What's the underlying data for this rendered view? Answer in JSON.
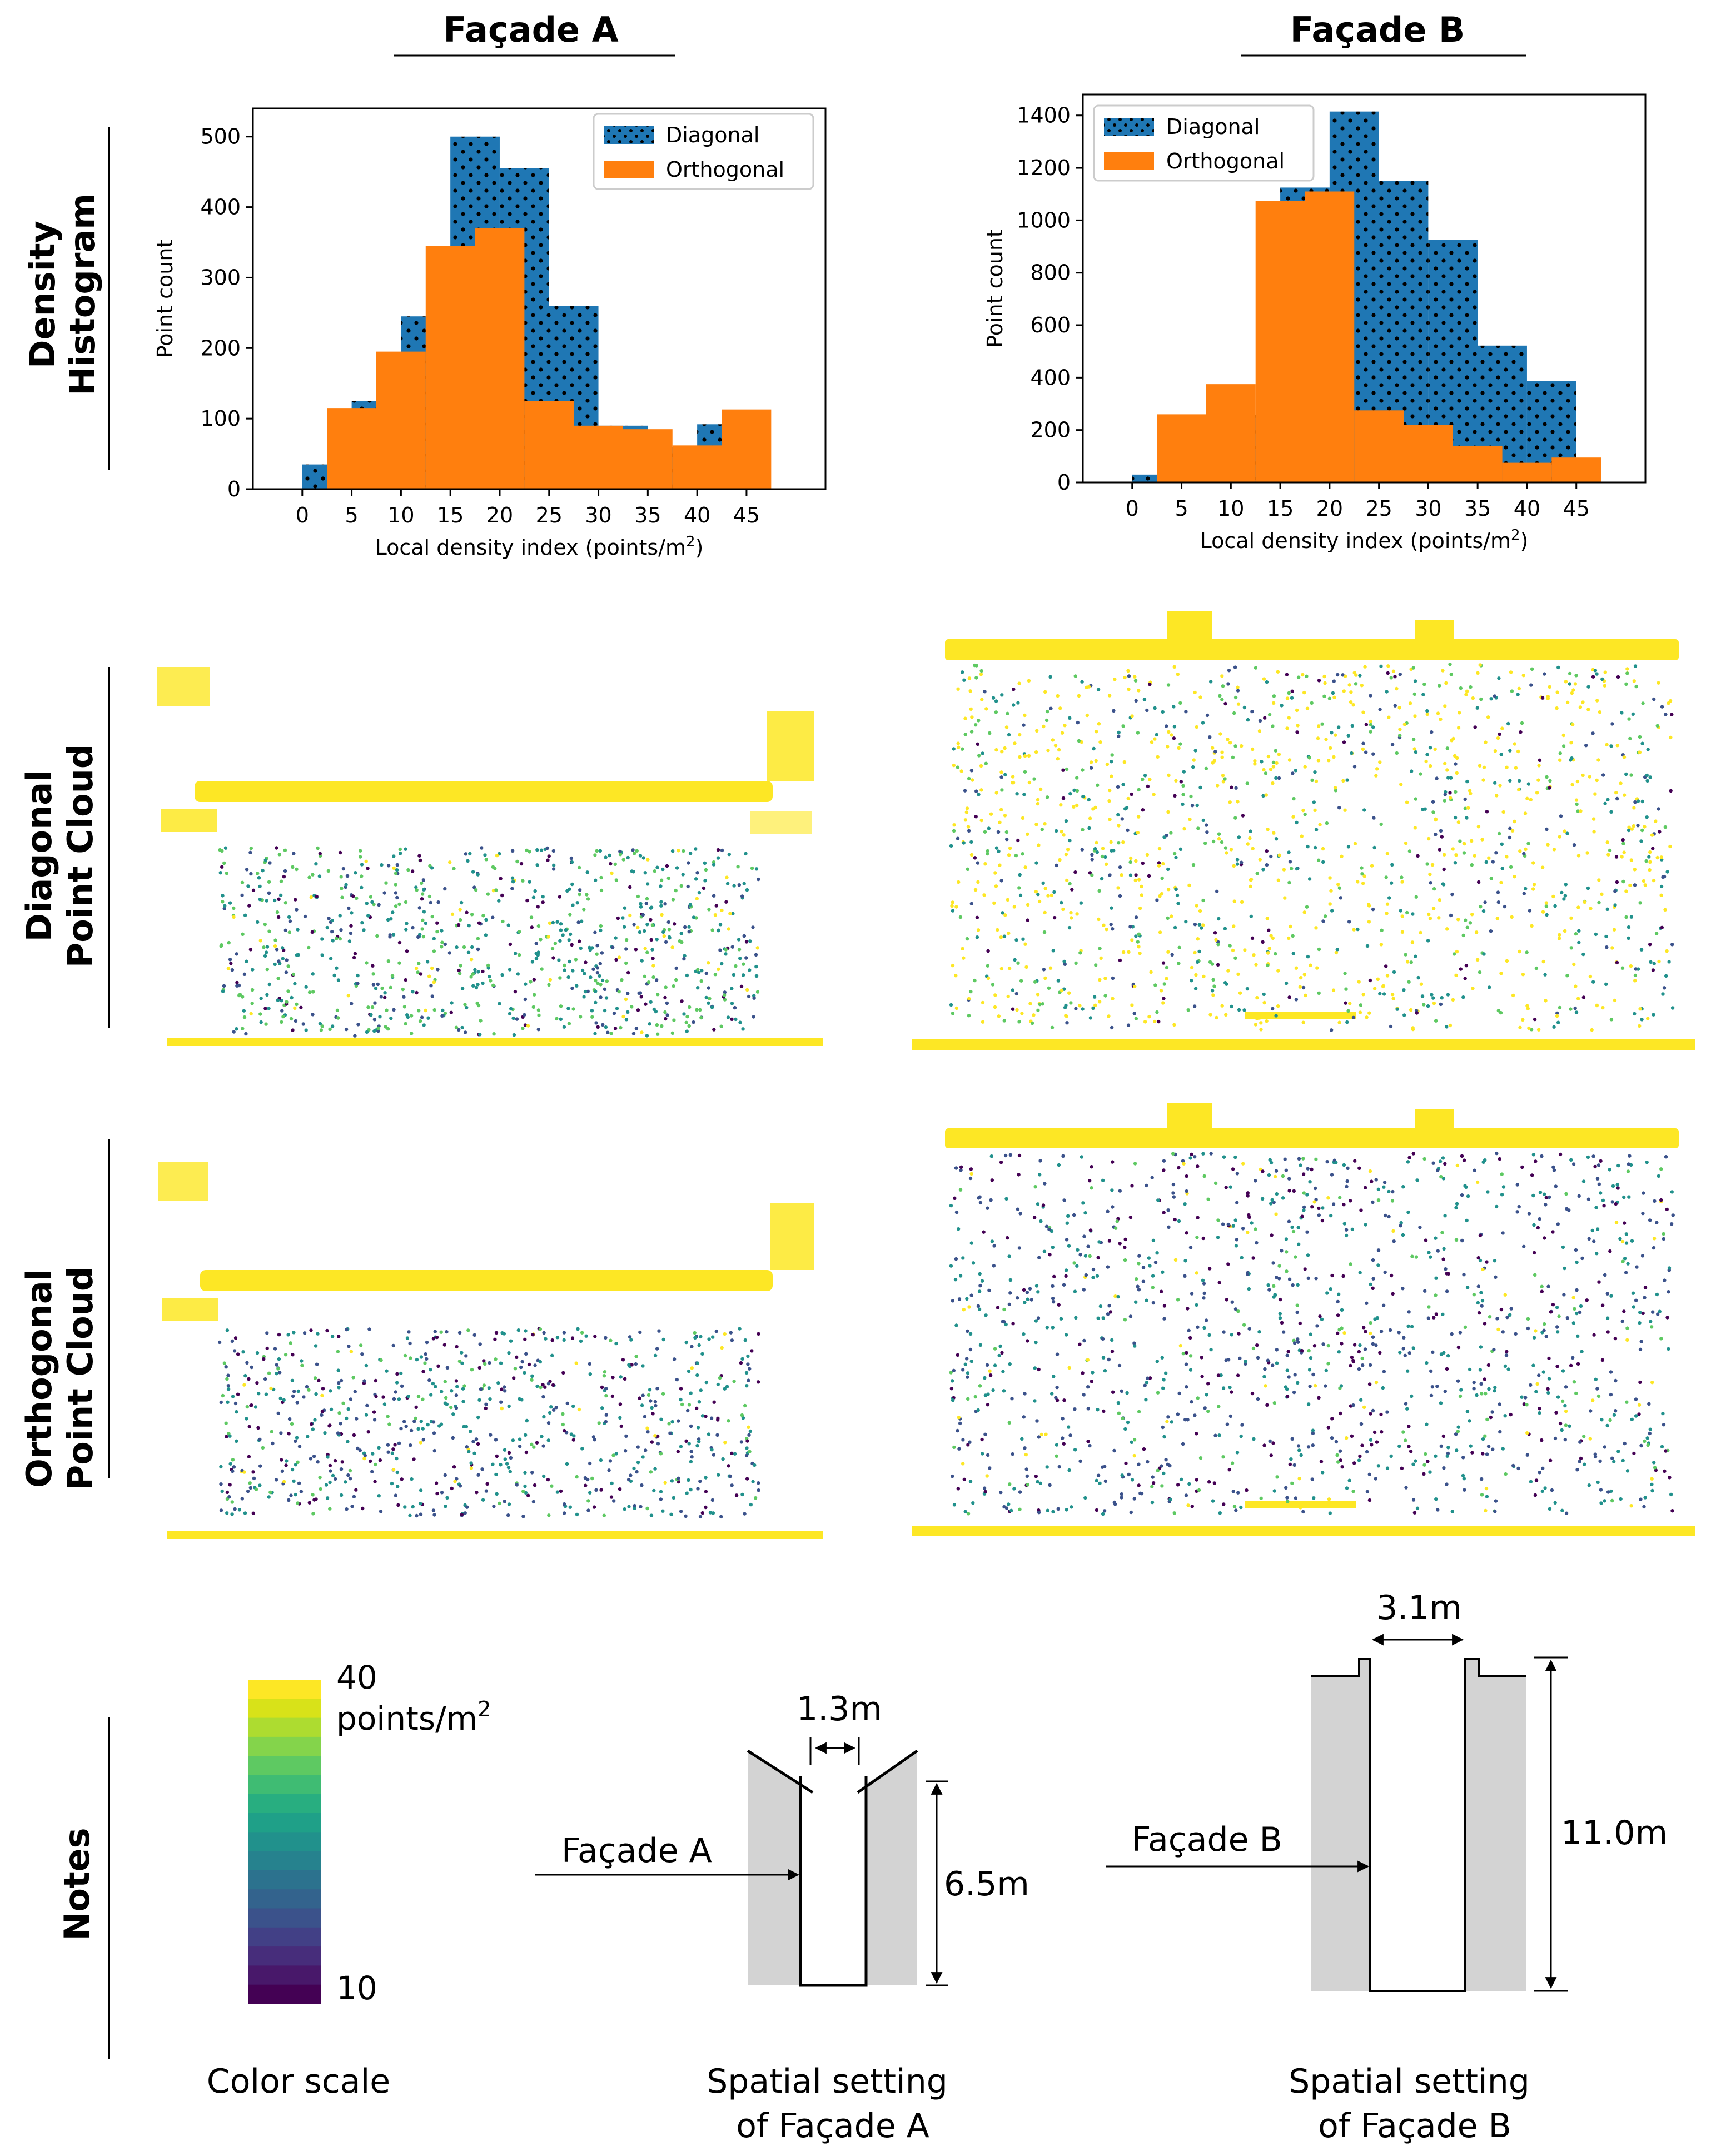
{
  "titles": {
    "facade_a": "Façade A",
    "facade_b": "Façade B",
    "rows": {
      "density_line1": "Density",
      "density_line2": "Histogram",
      "diagonal_line1": "Diagonal",
      "diagonal_line2": "Point Cloud",
      "orthogonal_line1": "Orthogonal",
      "orthogonal_line2": "Point Cloud",
      "notes": "Notes"
    }
  },
  "chart_data": [
    {
      "type": "bar",
      "title": "Façade A",
      "xlabel_main": "Local density index (points/m",
      "xlabel_sup": "2",
      "xlabel_end": ")",
      "ylabel": "Point count",
      "x_ticks": [
        "0",
        "5",
        "10",
        "15",
        "20",
        "25",
        "30",
        "35",
        "40",
        "45"
      ],
      "y_ticks": [
        "0",
        "100",
        "200",
        "300",
        "400",
        "500"
      ],
      "ylim": [
        0,
        540
      ],
      "bin_width": 5,
      "legend": "top-right",
      "series": [
        {
          "name": "Diagonal",
          "color": "#1f77b4",
          "hatch": "dots",
          "x": [
            2.5,
            7.5,
            12.5,
            17.5,
            22.5,
            27.5,
            32.5,
            37.5,
            42.5,
            47.5
          ],
          "values": [
            35,
            125,
            245,
            500,
            455,
            260,
            90,
            60,
            92,
            0
          ]
        },
        {
          "name": "Orthogonal",
          "color": "#ff7f0e",
          "hatch": "none",
          "x": [
            5,
            10,
            15,
            20,
            25,
            30,
            35,
            40,
            45,
            50
          ],
          "values": [
            115,
            195,
            345,
            370,
            125,
            90,
            85,
            62,
            113,
            0
          ]
        }
      ]
    },
    {
      "type": "bar",
      "title": "Façade B",
      "xlabel_main": "Local density index (points/m",
      "xlabel_sup": "2",
      "xlabel_end": ")",
      "ylabel": "Point count",
      "x_ticks": [
        "0",
        "5",
        "10",
        "15",
        "20",
        "25",
        "30",
        "35",
        "40",
        "45"
      ],
      "y_ticks": [
        "0",
        "200",
        "400",
        "600",
        "800",
        "1000",
        "1200",
        "1400"
      ],
      "ylim": [
        0,
        1480
      ],
      "bin_width": 5,
      "legend": "top-left",
      "series": [
        {
          "name": "Diagonal",
          "color": "#1f77b4",
          "hatch": "dots",
          "x": [
            2.5,
            7.5,
            12.5,
            17.5,
            22.5,
            27.5,
            32.5,
            37.5,
            42.5,
            47.5
          ],
          "values": [
            30,
            60,
            258,
            1125,
            1415,
            1150,
            925,
            522,
            388,
            0
          ]
        },
        {
          "name": "Orthogonal",
          "color": "#ff7f0e",
          "hatch": "none",
          "x": [
            5,
            10,
            15,
            20,
            25,
            30,
            35,
            40,
            45,
            50
          ],
          "values": [
            260,
            375,
            1075,
            1110,
            275,
            220,
            140,
            75,
            95,
            0
          ]
        }
      ]
    }
  ],
  "colorscale": {
    "max_label": "40",
    "unit_main": "points/m",
    "unit_sup": "2",
    "min_label": "10",
    "caption": "Color scale",
    "colors": [
      "#fde725",
      "#d8e219",
      "#addc30",
      "#84d44b",
      "#5ec962",
      "#3fbc73",
      "#28ae80",
      "#1fa088",
      "#21918c",
      "#26828e",
      "#2c728e",
      "#33638d",
      "#3b528b",
      "#424086",
      "#472d7b",
      "#48186a",
      "#440154"
    ]
  },
  "sections": {
    "a": {
      "label": "Façade A",
      "width_label": "1.3m",
      "height_label": "6.5m",
      "caption_line1": "Spatial setting",
      "caption_line2": "of Façade A"
    },
    "b": {
      "label": "Façade B",
      "width_label": "3.1m",
      "height_label": "11.0m",
      "caption_line1": "Spatial setting",
      "caption_line2": "of Façade B"
    }
  },
  "colors": {
    "yellow": "#fde725",
    "green": "#5ec962",
    "teal": "#21918c",
    "blue": "#3b528b",
    "purple": "#440154",
    "section_gray": "#d3d3d3"
  }
}
